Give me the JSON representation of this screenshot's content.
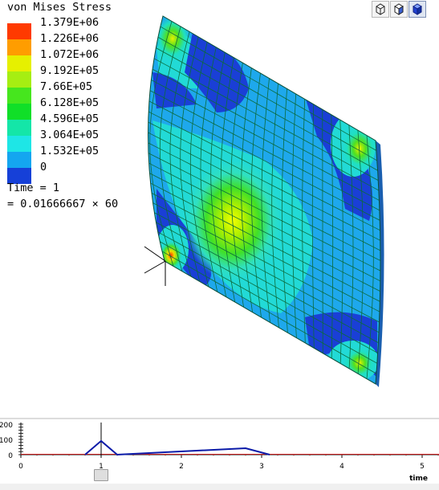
{
  "legend": {
    "title": "von Mises Stress",
    "entries": [
      {
        "label": "1.379E+06",
        "color": "#ff3a00"
      },
      {
        "label": "1.226E+06",
        "color": "#ff9d00"
      },
      {
        "label": "1.072E+06",
        "color": "#e6f000"
      },
      {
        "label": "9.192E+05",
        "color": "#a6ee12"
      },
      {
        "label": "7.66E+05",
        "color": "#46e61e"
      },
      {
        "label": "6.128E+05",
        "color": "#10df28"
      },
      {
        "label": "4.596E+05",
        "color": "#14e6a8"
      },
      {
        "label": "3.064E+05",
        "color": "#1ee6e6"
      },
      {
        "label": "1.532E+05",
        "color": "#14a6f0"
      },
      {
        "label": "0",
        "color": "#1640d8"
      }
    ]
  },
  "time": {
    "label": "Time = 1",
    "equation": "= 0.01666667 × 60"
  },
  "view_buttons": [
    {
      "name": "view-cube-button-1",
      "icon": "wireframe-cube-icon",
      "active": false
    },
    {
      "name": "view-cube-button-2",
      "icon": "shaded-cube-icon",
      "active": false
    },
    {
      "name": "view-cube-button-3",
      "icon": "solid-cube-icon",
      "active": true
    }
  ],
  "timeline": {
    "y_ticks": [
      "200",
      "100",
      "0"
    ],
    "x_ticks": [
      "0",
      "1",
      "2",
      "3",
      "4",
      "5"
    ],
    "x_axis_label": "time",
    "current_time": 1,
    "series": {
      "color": "#0a1aa8",
      "points": [
        [
          0.8,
          0
        ],
        [
          1.0,
          90
        ],
        [
          1.2,
          0
        ],
        [
          2.8,
          42
        ],
        [
          3.1,
          0
        ]
      ]
    },
    "baseline_color": "#cc2020"
  }
}
